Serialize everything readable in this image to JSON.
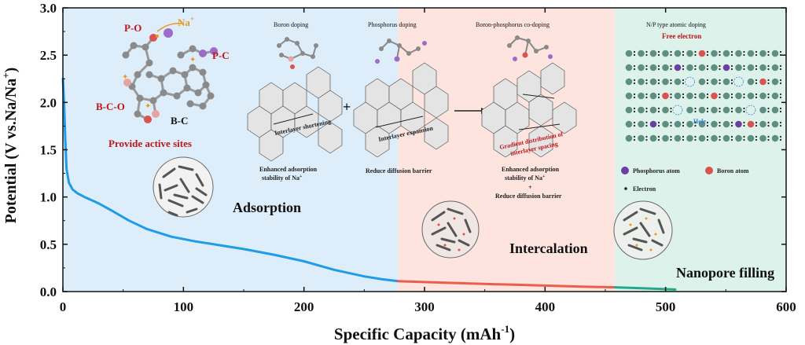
{
  "chart_data": {
    "type": "line",
    "xlabel": "Specific Capacity (mAh",
    "xlabel_sup": "-1",
    "xlabel_close": ")",
    "ylabel": "Potential (V vs.Na/Na",
    "ylabel_sup": "+",
    "ylabel_close": ")",
    "xlim": [
      0,
      600
    ],
    "ylim": [
      0,
      3.0
    ],
    "x_ticks": [
      0,
      100,
      200,
      300,
      400,
      500,
      600
    ],
    "y_ticks": [
      0.0,
      0.5,
      1.0,
      1.5,
      2.0,
      2.5,
      3.0
    ],
    "grid": false,
    "regions": [
      {
        "label": "Adsorption",
        "x_range": [
          0,
          278
        ],
        "color": "#ddeefa"
      },
      {
        "label": "Intercalation",
        "x_range": [
          278,
          458
        ],
        "color": "#fde4de"
      },
      {
        "label": "Nanopore filling",
        "x_range": [
          458,
          600
        ],
        "color": "#ddf2ea"
      }
    ],
    "series": [
      {
        "color": "#1f9be8",
        "x": [
          0,
          1,
          2,
          3,
          5,
          8,
          12,
          18,
          25,
          30,
          40,
          55,
          70,
          90,
          110,
          130,
          150,
          175,
          200,
          225,
          250,
          265,
          278
        ],
        "y": [
          2.25,
          2.0,
          1.6,
          1.3,
          1.15,
          1.08,
          1.04,
          1.0,
          0.96,
          0.93,
          0.86,
          0.75,
          0.66,
          0.58,
          0.53,
          0.49,
          0.45,
          0.39,
          0.32,
          0.23,
          0.16,
          0.13,
          0.11
        ]
      },
      {
        "color": "#e8604c",
        "x": [
          278,
          320,
          360,
          400,
          430,
          458
        ],
        "y": [
          0.11,
          0.092,
          0.077,
          0.063,
          0.052,
          0.045
        ]
      },
      {
        "color": "#22a88a",
        "x": [
          458,
          480,
          495,
          508
        ],
        "y": [
          0.045,
          0.035,
          0.028,
          0.022
        ]
      }
    ]
  },
  "annotations": {
    "zone_adsorption": "Adsorption",
    "zone_intercalation": "Intercalation",
    "zone_nanopore": "Nanopore filling",
    "provide_active_sites": "Provide active sites",
    "group_po": "P-O",
    "group_na": "Na",
    "group_na_sup": "+",
    "group_pc": "P-C",
    "group_bco": "B-C-O",
    "group_bc": "B-C",
    "boron_doping": "Boron doping",
    "phosphorus_doping": "Phosphorus doping",
    "bp_codoping": "Boron-phosphorus co-doping",
    "np_doping": "N/P type atomic doping",
    "free_electron": "Free electron",
    "hole": "Hole",
    "interlayer_shortening": "Interlayer shortening",
    "interlayer_expansion": "Interlayer expansion",
    "gradient_1": "Gradient distribution of",
    "gradient_2": "interlayer spacing",
    "enhanced_1": "Enhanced adsorption",
    "enhanced_2": "stability of Na",
    "enhanced_2_sup": "+",
    "reduce_barrier": "Reduce diffusion barrier",
    "combo_1": "Enhanced adsorption",
    "combo_2": "stability of Na",
    "combo_2_sup": "+",
    "combo_plus": "+",
    "combo_3": "Reduce diffusion barrier",
    "legend_phosphorus": "Phosphorus atom",
    "legend_boron": "Boron atom",
    "legend_electron": "Electron",
    "plus_sign": "+",
    "colors": {
      "adsorption_curve": "#1f9be8",
      "intercalation_curve": "#e8604c",
      "nanopore_curve": "#22a88a",
      "annotation_red": "#c0141b",
      "na_orange": "#e89a1e",
      "phosphorus_purple": "#6b3fa0",
      "boron_red": "#d9534f",
      "carbon_gray": "#8a8a8a",
      "nitrogen_teal": "#5f8f80"
    }
  }
}
